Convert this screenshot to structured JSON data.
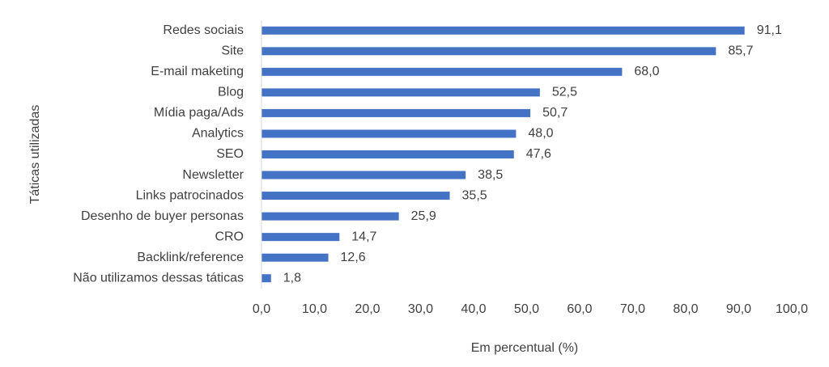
{
  "chart_data": {
    "type": "bar",
    "orientation": "horizontal",
    "categories": [
      "Redes sociais",
      "Site",
      "E-mail maketing",
      "Blog",
      "Mídia paga/Ads",
      "Analytics",
      "SEO",
      "Newsletter",
      "Links patrocinados",
      "Desenho de buyer personas",
      "CRO",
      "Backlink/reference",
      "Não utilizamos dessas táticas"
    ],
    "values": [
      91.1,
      85.7,
      68.0,
      52.5,
      50.7,
      48.0,
      47.6,
      38.5,
      35.5,
      25.9,
      14.7,
      12.6,
      1.8
    ],
    "value_labels": [
      "91,1",
      "85,7",
      "68,0",
      "52,5",
      "50,7",
      "48,0",
      "47,6",
      "38,5",
      "35,5",
      "25,9",
      "14,7",
      "12,6",
      "1,8"
    ],
    "xlim": [
      0,
      100
    ],
    "xticks": [
      "0,0",
      "10,0",
      "20,0",
      "30,0",
      "40,0",
      "50,0",
      "60,0",
      "70,0",
      "80,0",
      "90,0",
      "100,0"
    ],
    "xlabel": "Em percentual (%)",
    "ylabel": "Táticas utilizadas",
    "title": "",
    "grid": false,
    "legend": "none",
    "bar_color": "#4472C4",
    "axis_color": "#D9D9D9"
  }
}
